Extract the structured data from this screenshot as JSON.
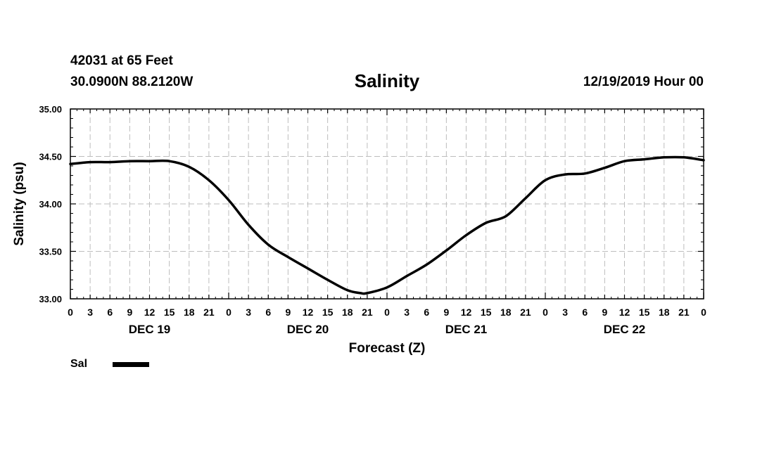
{
  "header": {
    "station": "42031 at 65 Feet",
    "coords": "30.0900N 88.2120W",
    "title": "Salinity",
    "run": "12/19/2019 Hour 00"
  },
  "chart_data": {
    "type": "line",
    "title": "Salinity",
    "xlabel": "Forecast (Z)",
    "ylabel": "Salinity (psu)",
    "ylim": [
      33.0,
      35.0
    ],
    "yticks": [
      "33.00",
      "33.50",
      "34.00",
      "34.50",
      "35.00"
    ],
    "xlim_hours": [
      0,
      96
    ],
    "xtick_labels": [
      "0",
      "3",
      "6",
      "9",
      "12",
      "15",
      "18",
      "21",
      "0",
      "3",
      "6",
      "9",
      "12",
      "15",
      "18",
      "21",
      "0",
      "3",
      "6",
      "9",
      "12",
      "15",
      "18",
      "21",
      "0",
      "3",
      "6",
      "9",
      "12",
      "15",
      "18",
      "21",
      "0"
    ],
    "day_labels": [
      "DEC 19",
      "DEC 20",
      "DEC 21",
      "DEC 22"
    ],
    "grid": true,
    "legend_position": "bottom-left",
    "series": [
      {
        "name": "Sal",
        "color": "#000000",
        "x": [
          0,
          3,
          6,
          9,
          12,
          15,
          18,
          21,
          24,
          27,
          30,
          33,
          36,
          39,
          42,
          44,
          45,
          48,
          51,
          54,
          57,
          60,
          63,
          66,
          69,
          72,
          75,
          78,
          81,
          84,
          87,
          90,
          93,
          96
        ],
        "y": [
          34.42,
          34.44,
          34.44,
          34.45,
          34.45,
          34.45,
          34.39,
          34.25,
          34.04,
          33.78,
          33.57,
          33.44,
          33.32,
          33.2,
          33.09,
          33.06,
          33.06,
          33.12,
          33.24,
          33.36,
          33.51,
          33.67,
          33.8,
          33.87,
          34.06,
          34.25,
          34.31,
          34.32,
          34.38,
          34.45,
          34.47,
          34.49,
          34.49,
          34.46
        ]
      }
    ]
  },
  "legend": {
    "label": "Sal",
    "color": "#000000"
  }
}
